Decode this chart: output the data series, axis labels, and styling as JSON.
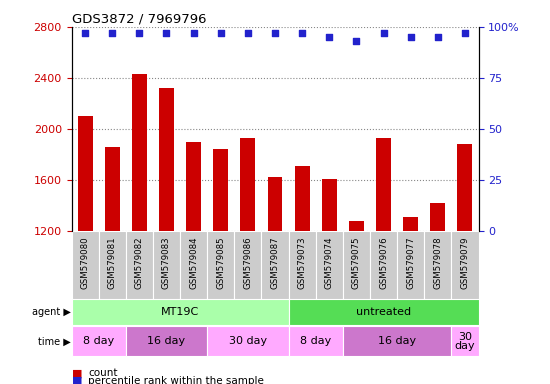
{
  "title": "GDS3872 / 7969796",
  "samples": [
    "GSM579080",
    "GSM579081",
    "GSM579082",
    "GSM579083",
    "GSM579084",
    "GSM579085",
    "GSM579086",
    "GSM579087",
    "GSM579073",
    "GSM579074",
    "GSM579075",
    "GSM579076",
    "GSM579077",
    "GSM579078",
    "GSM579079"
  ],
  "counts": [
    2100,
    1860,
    2430,
    2320,
    1900,
    1840,
    1930,
    1620,
    1710,
    1610,
    1280,
    1930,
    1310,
    1420,
    1880
  ],
  "percentile_ranks": [
    97,
    97,
    97,
    97,
    97,
    97,
    97,
    97,
    97,
    95,
    93,
    97,
    95,
    95,
    97
  ],
  "bar_color": "#cc0000",
  "dot_color": "#2222cc",
  "ylim_left": [
    1200,
    2800
  ],
  "ylim_right": [
    0,
    100
  ],
  "yticks_left": [
    1200,
    1600,
    2000,
    2400,
    2800
  ],
  "yticks_right": [
    0,
    25,
    50,
    75,
    100
  ],
  "left_tick_color": "#cc0000",
  "right_tick_color": "#2222cc",
  "grid_color": "#888888",
  "label_bg_color": "#cccccc",
  "label_divider_color": "#ffffff",
  "agent_segments": [
    {
      "label": "MT19C",
      "start": 0,
      "end": 8,
      "color": "#aaffaa"
    },
    {
      "label": "untreated",
      "start": 8,
      "end": 15,
      "color": "#55dd55"
    }
  ],
  "time_segments": [
    {
      "label": "8 day",
      "start": 0,
      "end": 2,
      "color": "#ffaaff"
    },
    {
      "label": "16 day",
      "start": 2,
      "end": 5,
      "color": "#cc77cc"
    },
    {
      "label": "30 day",
      "start": 5,
      "end": 8,
      "color": "#ffaaff"
    },
    {
      "label": "8 day",
      "start": 8,
      "end": 10,
      "color": "#ffaaff"
    },
    {
      "label": "16 day",
      "start": 10,
      "end": 14,
      "color": "#cc77cc"
    },
    {
      "label": "30\nday",
      "start": 14,
      "end": 15,
      "color": "#ffaaff"
    }
  ],
  "legend_bar_color": "#cc0000",
  "legend_dot_color": "#2222cc"
}
